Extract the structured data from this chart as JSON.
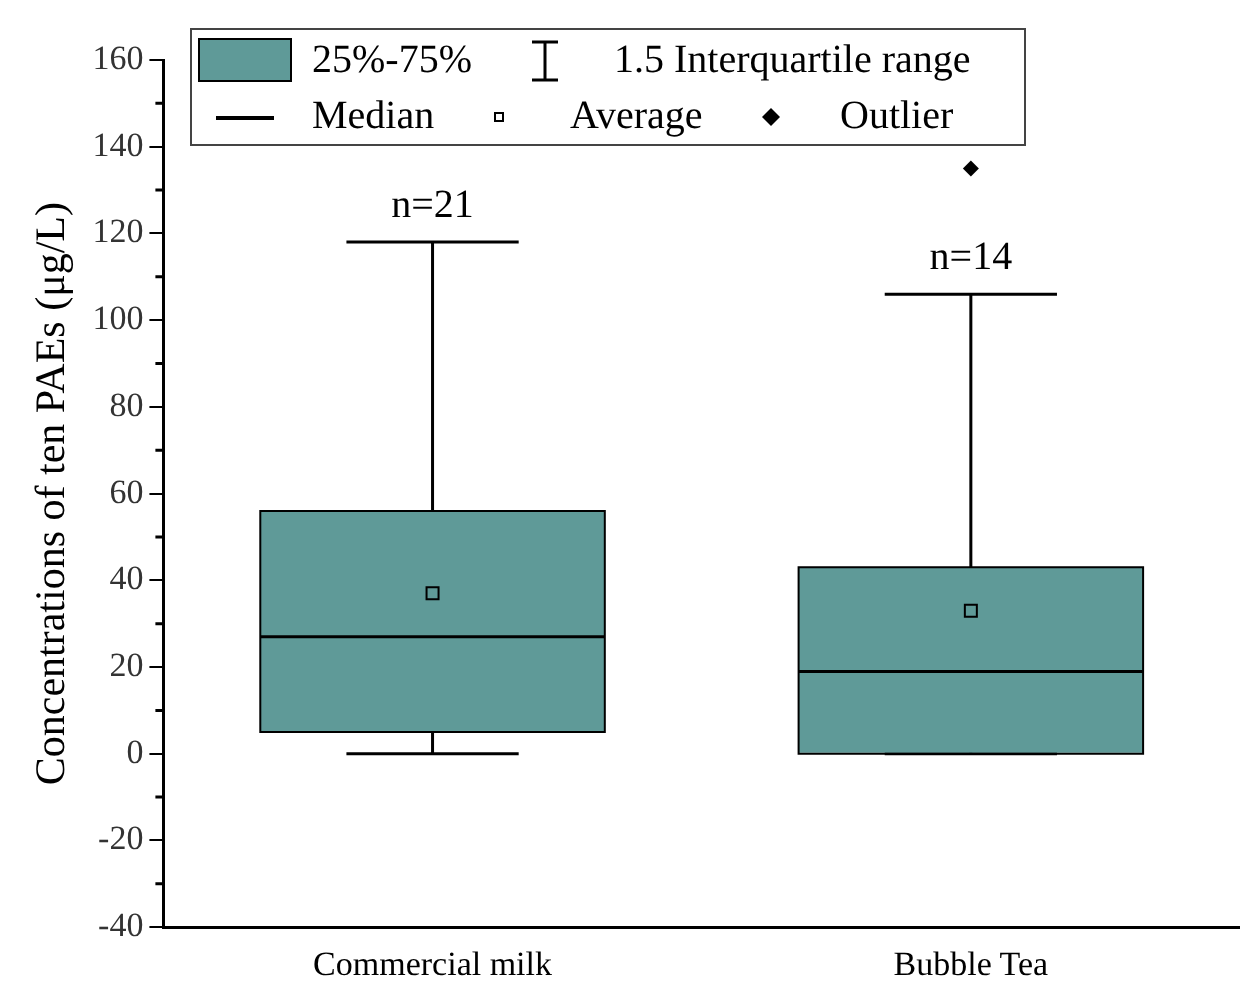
{
  "chart_data": {
    "type": "box",
    "ylabel": "Concentrations of ten PAEs (μg/L)",
    "categories": [
      "Commercial milk",
      "Bubble Tea"
    ],
    "series": [
      {
        "color": "#5f9a98",
        "boxes": [
          {
            "low": 0,
            "q1": 5,
            "median": 27,
            "q3": 56,
            "high": 118,
            "mean": 37
          },
          {
            "low": 0,
            "q1": 0,
            "median": 19,
            "q3": 43,
            "high": 106,
            "mean": 33,
            "outliers": [
              135
            ]
          }
        ]
      }
    ],
    "ylim": [
      -40,
      160
    ],
    "yticks": [
      -40,
      {
        "value": -30,
        "label": null
      },
      -20,
      {
        "value": -10,
        "label": null
      },
      0,
      {
        "value": 10,
        "label": null
      },
      20,
      {
        "value": 30,
        "label": null
      },
      40,
      {
        "value": 50,
        "label": null
      },
      60,
      {
        "value": 70,
        "label": null
      },
      80,
      {
        "value": 90,
        "label": null
      },
      100,
      {
        "value": 110,
        "label": null
      },
      120,
      {
        "value": 130,
        "label": null
      },
      140,
      {
        "value": 150,
        "label": null
      },
      160
    ],
    "grid": false,
    "annotations": [
      {
        "text": "n=21",
        "x": "Commercial milk",
        "y": 118
      },
      {
        "text": "n=14",
        "x": "Bubble Tea",
        "y": 106
      },
      "25%-75%",
      "1.5 Interquartile range",
      "Median",
      "Average",
      "Outlier"
    ]
  }
}
